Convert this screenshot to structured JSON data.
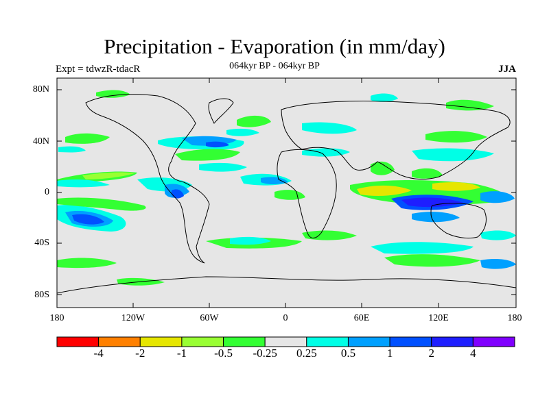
{
  "title": "Precipitation - Evaporation (in mm/day)",
  "left_label": "Expt = tdwzR-tdacR",
  "center_label": "064kyr BP - 064kyr BP",
  "right_label": "JJA",
  "lat_ticks": [
    "80N",
    "40N",
    "0",
    "40S",
    "80S"
  ],
  "lon_ticks": [
    "180",
    "120W",
    "60W",
    "0",
    "60E",
    "120E",
    "180"
  ],
  "colorbar": {
    "colors": [
      "#ff0000",
      "#ff8000",
      "#e6e600",
      "#99ff33",
      "#33ff33",
      "#e6e6e6",
      "#00ffe6",
      "#00a0ff",
      "#0050ff",
      "#1e1eff",
      "#8000ff"
    ],
    "labels": [
      "-4",
      "-2",
      "-1",
      "-0.5",
      "-0.25",
      "0.25",
      "0.5",
      "1",
      "2",
      "4"
    ]
  },
  "colors": {
    "background": "#e6e6e6",
    "coast": "#000000"
  }
}
